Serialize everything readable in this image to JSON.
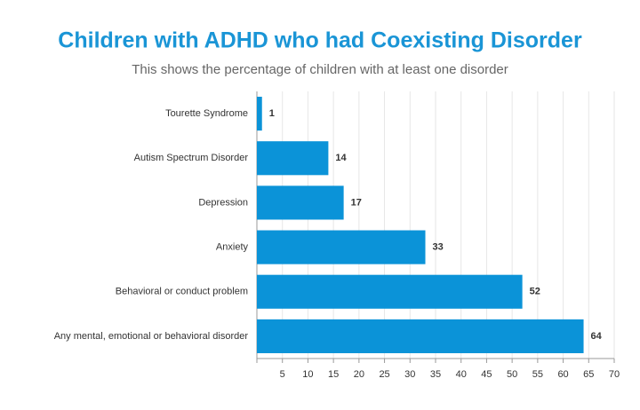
{
  "chart_data": {
    "type": "bar",
    "orientation": "horizontal",
    "title": "Children with ADHD who had Coexisting Disorder",
    "subtitle": "This shows the percentage of children with at least one disorder",
    "categories": [
      "Tourette Syndrome",
      "Autism Spectrum Disorder",
      "Depression",
      "Anxiety",
      "Behavioral or conduct problem",
      "Any mental, emotional or behavioral disorder"
    ],
    "values": [
      1,
      14,
      17,
      33,
      52,
      64
    ],
    "color": "#0b93d8",
    "xlim": [
      0,
      70
    ],
    "xticks": [
      5,
      10,
      15,
      20,
      25,
      30,
      35,
      40,
      45,
      50,
      55,
      60,
      65,
      70
    ],
    "grid": true
  }
}
